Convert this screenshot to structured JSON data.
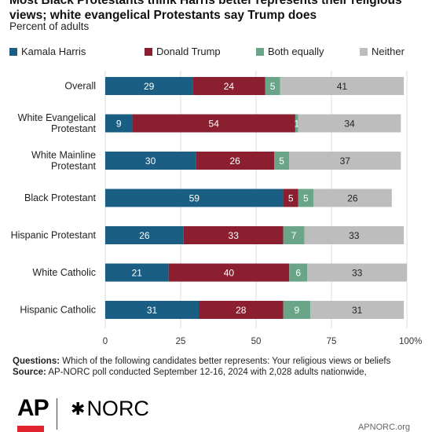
{
  "title": "Most Black Protestants think Harris better represents their religious views; white evangelical Protestants say Trump does",
  "subtitle": "Percent of adults",
  "chart_data": {
    "type": "bar",
    "orientation": "horizontal",
    "stacked": true,
    "categories": [
      [
        "Overall"
      ],
      [
        "White Evangelical",
        "Protestant"
      ],
      [
        "White Mainline",
        "Protestant"
      ],
      [
        "Black Protestant"
      ],
      [
        "Hispanic Protestant"
      ],
      [
        "White Catholic"
      ],
      [
        "Hispanic Catholic"
      ]
    ],
    "series": [
      {
        "name": "Kamala Harris",
        "color": "#1a5f83",
        "values": [
          29,
          9,
          30,
          59,
          26,
          21,
          31
        ]
      },
      {
        "name": "Donald Trump",
        "color": "#8b1f2f",
        "values": [
          24,
          54,
          26,
          5,
          33,
          40,
          28
        ]
      },
      {
        "name": "Both equally",
        "color": "#6aa589",
        "values": [
          5,
          1,
          5,
          5,
          7,
          6,
          9
        ]
      },
      {
        "name": "Neither",
        "color": "#bdbdbd",
        "values": [
          41,
          34,
          37,
          26,
          33,
          33,
          31
        ]
      }
    ],
    "xticks": [
      "0",
      "25",
      "50",
      "75",
      "100%"
    ],
    "xlim": [
      0,
      100
    ],
    "legend": "top"
  },
  "footer": {
    "questions_label": "Questions:",
    "questions_text": "Which of the following candidates better represents: Your religious views or beliefs",
    "source_label": "Source:",
    "source_text": "AP-NORC poll conducted September 12-16, 2024 with 2,028 adults nationwide,"
  },
  "logos": {
    "ap": "AP",
    "norc": "NORC",
    "norc_icon": "spark-icon",
    "site": "APNORC.org"
  }
}
